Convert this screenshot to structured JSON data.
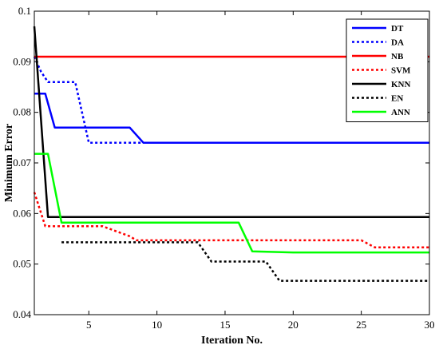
{
  "chart_data": {
    "type": "line",
    "xlabel": "Iteration No.",
    "ylabel": "Minimum Error",
    "xlim": [
      1,
      30
    ],
    "ylim": [
      0.04,
      0.1
    ],
    "xticks": [
      5,
      10,
      15,
      20,
      25,
      30
    ],
    "xtick_labels": [
      "5",
      "10",
      "15",
      "20",
      "25",
      "30"
    ],
    "yticks": [
      0.04,
      0.05,
      0.06,
      0.07,
      0.08,
      0.09,
      0.1
    ],
    "ytick_labels": [
      "0.04",
      "0.05",
      "0.06",
      "0.07",
      "0.08",
      "0.09",
      "0.1"
    ],
    "grid": false,
    "legend_position": "top-right",
    "series": [
      {
        "name": "DT",
        "color": "#0000ff",
        "style": "solid",
        "x": [
          1,
          1.8,
          2.5,
          3,
          8,
          9,
          30
        ],
        "y": [
          0.0837,
          0.0837,
          0.077,
          0.077,
          0.077,
          0.074,
          0.074
        ]
      },
      {
        "name": "DA",
        "color": "#0000ff",
        "style": "dotted",
        "x": [
          1,
          1.5,
          2,
          4,
          5,
          30
        ],
        "y": [
          0.091,
          0.088,
          0.086,
          0.086,
          0.074,
          0.074
        ]
      },
      {
        "name": "NB",
        "color": "#ff0000",
        "style": "solid",
        "x": [
          1,
          30
        ],
        "y": [
          0.091,
          0.091
        ]
      },
      {
        "name": "SVM",
        "color": "#ff0000",
        "style": "dotted",
        "x": [
          1,
          1.8,
          6,
          8,
          8.5,
          25,
          26,
          30
        ],
        "y": [
          0.0642,
          0.0575,
          0.0575,
          0.0555,
          0.0547,
          0.0547,
          0.0533,
          0.0533
        ]
      },
      {
        "name": "KNN",
        "color": "#000000",
        "style": "solid",
        "x": [
          1,
          2,
          30
        ],
        "y": [
          0.097,
          0.0593,
          0.0593
        ]
      },
      {
        "name": "EN",
        "color": "#000000",
        "style": "dotted",
        "x": [
          3,
          13,
          14,
          18,
          19,
          30
        ],
        "y": [
          0.0543,
          0.0543,
          0.0505,
          0.0505,
          0.0467,
          0.0467
        ]
      },
      {
        "name": "ANN",
        "color": "#00ff00",
        "style": "solid",
        "x": [
          1,
          2,
          3,
          16,
          17,
          20,
          30
        ],
        "y": [
          0.0718,
          0.0718,
          0.0582,
          0.0582,
          0.0525,
          0.0523,
          0.0523
        ]
      }
    ]
  }
}
